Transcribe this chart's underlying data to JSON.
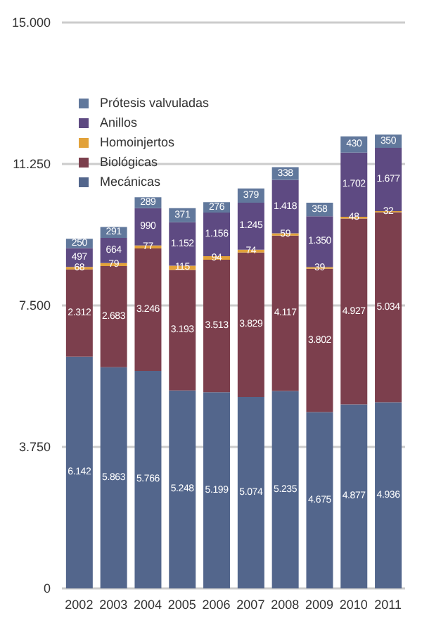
{
  "chart_data": {
    "type": "bar",
    "stacked": true,
    "categories": [
      "2002",
      "2003",
      "2004",
      "2005",
      "2006",
      "2007",
      "2008",
      "2009",
      "2010",
      "2011"
    ],
    "series": [
      {
        "name": "Mecánicas",
        "color": "#53668c",
        "values": [
          6142,
          5863,
          5766,
          5248,
          5199,
          5074,
          5235,
          4675,
          4877,
          4936
        ],
        "value_labels": [
          "6.142",
          "5.863",
          "5.766",
          "5.248",
          "5.199",
          "5.074",
          "5.235",
          "4.675",
          "4.877",
          "4.936"
        ]
      },
      {
        "name": "Biológicas",
        "color": "#7c3f4d",
        "values": [
          2312,
          2683,
          3246,
          3193,
          3513,
          3829,
          4117,
          3802,
          4927,
          5034
        ],
        "value_labels": [
          "2.312",
          "2.683",
          "3.246",
          "3.193",
          "3.513",
          "3.829",
          "4.117",
          "3.802",
          "4.927",
          "5.034"
        ]
      },
      {
        "name": "Homoinjertos",
        "color": "#e2a23a",
        "values": [
          68,
          79,
          77,
          115,
          94,
          74,
          59,
          39,
          48,
          32
        ],
        "value_labels": [
          "68",
          "79",
          "77",
          "115",
          "94",
          "74",
          "59",
          "39",
          "48",
          "32"
        ]
      },
      {
        "name": "Anillos",
        "color": "#5e4a82",
        "values": [
          497,
          664,
          990,
          1152,
          1156,
          1245,
          1418,
          1350,
          1702,
          1677
        ],
        "value_labels": [
          "497",
          "664",
          "990",
          "1.152",
          "1.156",
          "1.245",
          "1.418",
          "1.350",
          "1.702",
          "1.677"
        ]
      },
      {
        "name": "Prótesis valvuladas",
        "color": "#61789c",
        "values": [
          250,
          291,
          289,
          371,
          276,
          379,
          338,
          358,
          430,
          350
        ],
        "value_labels": [
          "250",
          "291",
          "289",
          "371",
          "276",
          "379",
          "338",
          "358",
          "430",
          "350"
        ]
      }
    ],
    "ylim": [
      0,
      15000
    ],
    "yticks": [
      0,
      {
        "value": 3750,
        "label": "3.750"
      },
      {
        "value": 7500,
        "label": "7.500"
      },
      {
        "value": 11250,
        "label": "11.250"
      },
      {
        "value": 15000,
        "label": "15.000"
      }
    ],
    "grid": "y",
    "legend": "top left"
  }
}
